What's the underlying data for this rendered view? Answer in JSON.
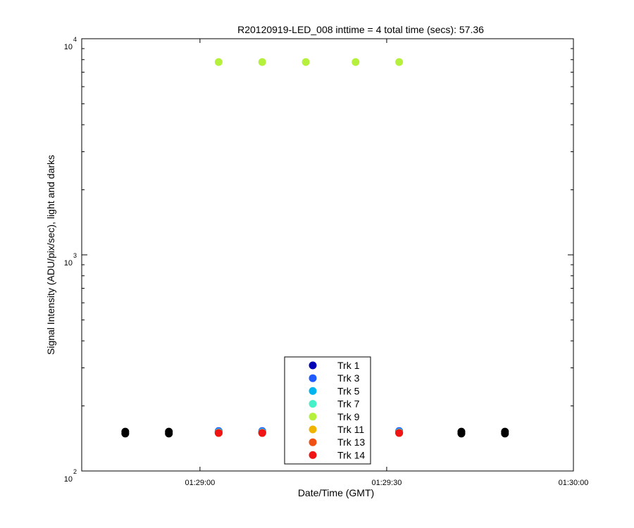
{
  "chart_data": {
    "type": "scatter",
    "title": "R20120919-LED_008 inttime = 4 total time (secs): 57.36",
    "xlabel": "Date/Time (GMT)",
    "ylabel": "Signal Intensity (ADU/pix/sec), light and darks",
    "x_ticks": [
      "01:29:00",
      "01:29:30",
      "01:30:00"
    ],
    "xlim": [
      "01:28:41",
      "01:30:00"
    ],
    "y_scale": "log",
    "ylim": [
      100,
      10000
    ],
    "y_ticks": [
      {
        "base": "10",
        "exp": "2"
      },
      {
        "base": "10",
        "exp": "3"
      },
      {
        "base": "10",
        "exp": "4"
      }
    ],
    "grid": false,
    "legend_position": "lower-center",
    "series": [
      {
        "name": "Trk 1",
        "color": "#0000b4",
        "x": [
          "01:29:03",
          "01:29:10",
          "01:29:32"
        ],
        "y": [
          152,
          152,
          152
        ]
      },
      {
        "name": "Trk 3",
        "color": "#1e5aff",
        "x": [
          "01:29:03",
          "01:29:10",
          "01:29:32"
        ],
        "y": [
          153,
          153,
          153
        ]
      },
      {
        "name": "Trk 5",
        "color": "#00b4f0",
        "x": [
          "01:29:03",
          "01:29:10",
          "01:29:32"
        ],
        "y": [
          151,
          151,
          151
        ]
      },
      {
        "name": "Trk 7",
        "color": "#46f0c8",
        "x": [
          "01:29:03",
          "01:29:10",
          "01:29:32"
        ],
        "y": [
          151,
          151,
          151
        ]
      },
      {
        "name": "Trk 9",
        "color": "#b4f03c",
        "x": [
          "01:29:03",
          "01:29:10",
          "01:29:17",
          "01:29:25",
          "01:29:32"
        ],
        "y": [
          7800,
          7800,
          7800,
          7800,
          7800
        ]
      },
      {
        "name": "Trk 11",
        "color": "#f0b400",
        "x": [
          "01:29:03",
          "01:29:10",
          "01:29:32"
        ],
        "y": [
          150,
          150,
          150
        ]
      },
      {
        "name": "Trk 13",
        "color": "#f05014",
        "x": [
          "01:29:03",
          "01:29:10",
          "01:29:32"
        ],
        "y": [
          150,
          150,
          150
        ]
      },
      {
        "name": "Trk 14",
        "color": "#f01414",
        "x": [
          "01:29:03",
          "01:29:10",
          "01:29:32"
        ],
        "y": [
          150,
          150,
          150
        ]
      },
      {
        "color": "#000000",
        "x": [
          "01:28:48",
          "01:28:48",
          "01:28:55",
          "01:28:55",
          "01:29:42",
          "01:29:42",
          "01:29:49",
          "01:29:49"
        ],
        "y": [
          149,
          152,
          149,
          152,
          149,
          152,
          149,
          152
        ]
      }
    ]
  }
}
